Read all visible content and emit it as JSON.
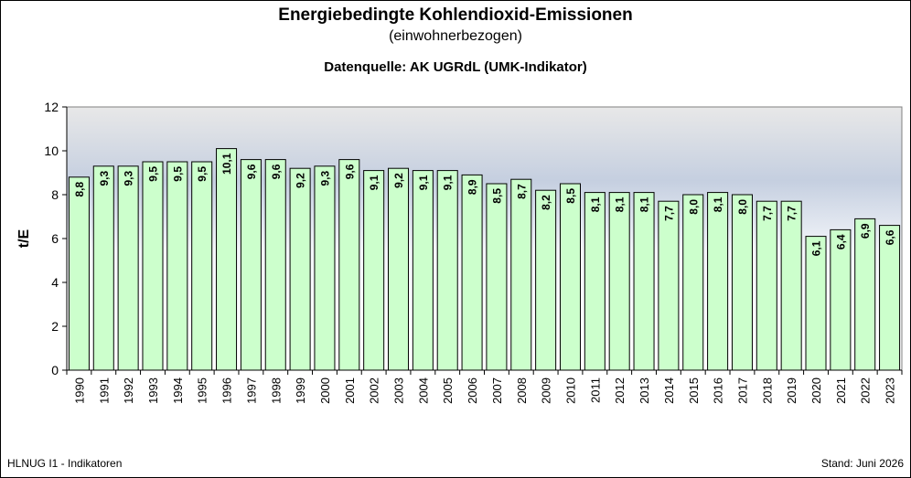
{
  "header": {
    "title": "Energiebedingte Kohlendioxid-Emissionen",
    "subtitle": "(einwohnerbezogen)",
    "source": "Datenquelle: AK UGRdL (UMK-Indikator)"
  },
  "footer": {
    "left": "HLNUG I1 - Indikatoren",
    "right": "Stand: Juni 2026"
  },
  "chart_data": {
    "type": "bar",
    "ylabel": "t/E",
    "ylim": [
      0,
      12
    ],
    "yticks": [
      0,
      2,
      4,
      6,
      8,
      10,
      12
    ],
    "grid": false,
    "categories": [
      "1990",
      "1991",
      "1992",
      "1993",
      "1994",
      "1995",
      "1996",
      "1997",
      "1998",
      "1999",
      "2000",
      "2001",
      "2002",
      "2003",
      "2004",
      "2005",
      "2006",
      "2007",
      "2008",
      "2009",
      "2010",
      "2011",
      "2012",
      "2013",
      "2014",
      "2015",
      "2016",
      "2017",
      "2018",
      "2019",
      "2020",
      "2021",
      "2022",
      "2023"
    ],
    "values": [
      8.8,
      9.3,
      9.3,
      9.5,
      9.5,
      9.5,
      10.1,
      9.6,
      9.6,
      9.2,
      9.3,
      9.6,
      9.1,
      9.2,
      9.1,
      9.1,
      8.9,
      8.5,
      8.7,
      8.2,
      8.5,
      8.1,
      8.1,
      8.1,
      7.7,
      8.0,
      8.1,
      8.0,
      7.7,
      7.7,
      6.1,
      6.4,
      6.9,
      6.6
    ],
    "data_labels": [
      "8,8",
      "9,3",
      "9,3",
      "9,5",
      "9,5",
      "9,5",
      "10,1",
      "9,6",
      "9,6",
      "9,2",
      "9,3",
      "9,6",
      "9,1",
      "9,2",
      "9,1",
      "9,1",
      "8,9",
      "8,5",
      "8,7",
      "8,2",
      "8,5",
      "8,1",
      "8,1",
      "8,1",
      "7,7",
      "8,0",
      "8,1",
      "8,0",
      "7,7",
      "7,7",
      "6,1",
      "6,4",
      "6,9",
      "6,6"
    ],
    "colors": {
      "bar_fill": "#ccffcc",
      "bar_stroke": "#000000",
      "plot_top": "#b8c4d8",
      "plot_bottom": "#ffffff"
    }
  }
}
